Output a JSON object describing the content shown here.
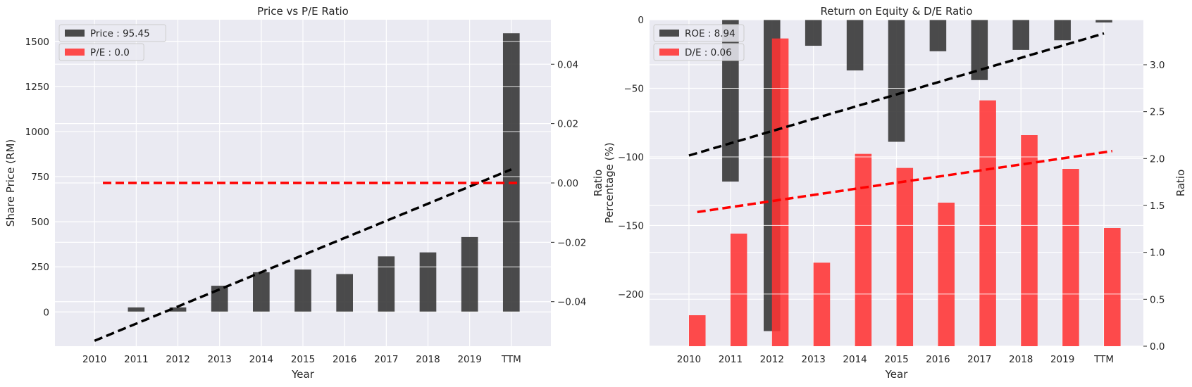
{
  "colors": {
    "background": "#eaeaf2",
    "grid": "#ffffff",
    "bar_dark": "#333333",
    "bar_red": "#ff3333",
    "trend_black": "#000000",
    "trend_red": "#ff0000"
  },
  "chart_data": [
    {
      "type": "bar",
      "title": "Price vs P/E Ratio",
      "xlabel": "Year",
      "ylabel": "Share Price (RM)",
      "y2label": "",
      "categories": [
        "2010",
        "2011",
        "2012",
        "2013",
        "2014",
        "2015",
        "2016",
        "2017",
        "2018",
        "2019",
        "TTM"
      ],
      "ylim": [
        -190,
        1620
      ],
      "yticks": [
        0,
        250,
        500,
        750,
        1000,
        1250,
        1500
      ],
      "y2lim": [
        -0.055,
        0.055
      ],
      "y2ticks": [
        -0.04,
        -0.02,
        0.0,
        0.02,
        0.04
      ],
      "y2ticklabels": [
        "−0.04",
        "−0.02",
        "0.00",
        "0.02",
        "0.04"
      ],
      "grid": true,
      "legend_position": "top-left",
      "series": [
        {
          "name": "Price : 95.45",
          "axis": "left",
          "kind": "bar",
          "values": [
            0,
            25,
            25,
            145,
            220,
            235,
            210,
            308,
            330,
            415,
            1545
          ]
        },
        {
          "name": "P/E : 0.0",
          "axis": "right",
          "kind": "bar",
          "values": [
            0,
            0,
            0,
            0,
            0,
            0,
            0,
            0,
            0,
            0,
            0
          ]
        }
      ],
      "trendlines": [
        {
          "axis": "left",
          "style": "dashed",
          "color": "black",
          "points": [
            [
              0,
              -160
            ],
            [
              10,
              790
            ]
          ]
        },
        {
          "axis": "right",
          "style": "dashed",
          "color": "red",
          "points": [
            [
              0.2,
              0.0
            ],
            [
              10.2,
              0.0
            ]
          ]
        }
      ]
    },
    {
      "type": "bar",
      "title": "Return on Equity & D/E Ratio",
      "xlabel": "Year",
      "ylabel": "Percentage (%)",
      "ylabel2": "Ratio",
      "y2label": "Ratio",
      "categories": [
        "2010",
        "2011",
        "2012",
        "2013",
        "2014",
        "2015",
        "2016",
        "2017",
        "2018",
        "2019",
        "TTM"
      ],
      "ylim": [
        -238,
        0
      ],
      "yticks": [
        -200,
        -150,
        -100,
        -50,
        0
      ],
      "yticklabels": [
        "−200",
        "−150",
        "−100",
        "−50",
        "0"
      ],
      "y2lim": [
        0,
        3.48
      ],
      "y2ticks": [
        0.0,
        0.5,
        1.0,
        1.5,
        2.0,
        2.5,
        3.0
      ],
      "y2ticklabels": [
        "0.0",
        "0.5",
        "1.0",
        "1.5",
        "2.0",
        "2.5",
        "3.0"
      ],
      "grid": true,
      "legend_position": "top-left",
      "series": [
        {
          "name": "ROE : 8.94",
          "axis": "left",
          "kind": "bar",
          "values": [
            0,
            -118,
            -227,
            -19,
            -37,
            -89,
            -23,
            -44,
            -22,
            -15,
            -2
          ]
        },
        {
          "name": "D/E : 0.06",
          "axis": "right",
          "kind": "bar",
          "values": [
            0.33,
            1.2,
            3.28,
            0.89,
            2.05,
            1.9,
            1.53,
            2.62,
            2.25,
            1.89,
            1.26
          ]
        }
      ],
      "trendlines": [
        {
          "axis": "left",
          "style": "dashed",
          "color": "black",
          "points": [
            [
              0,
              -99
            ],
            [
              10,
              -10
            ]
          ]
        },
        {
          "axis": "right",
          "style": "dashed",
          "color": "red",
          "points": [
            [
              0.2,
              1.43
            ],
            [
              10.2,
              2.08
            ]
          ]
        }
      ]
    }
  ]
}
